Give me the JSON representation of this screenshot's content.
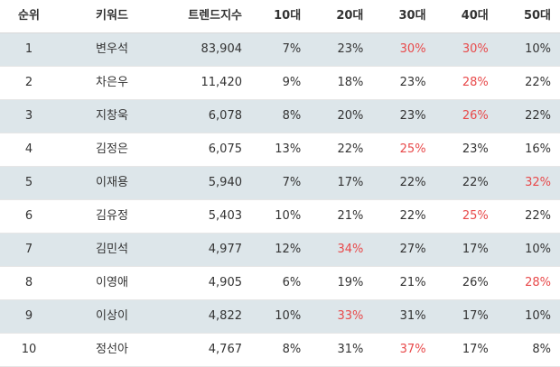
{
  "colors": {
    "highlight": "#e8494a",
    "row_shade": "#dde6ea",
    "text": "#333333"
  },
  "headers": [
    "순위",
    "키워드",
    "트렌드지수",
    "10대",
    "20대",
    "30대",
    "40대",
    "50대"
  ],
  "rows": [
    {
      "rank": "1",
      "keyword": "변우석",
      "index": "83,904",
      "p10": "7%",
      "p20": "23%",
      "p30": "30%",
      "p40": "30%",
      "p50": "10%",
      "hl": [
        "p30",
        "p40"
      ]
    },
    {
      "rank": "2",
      "keyword": "차은우",
      "index": "11,420",
      "p10": "9%",
      "p20": "18%",
      "p30": "23%",
      "p40": "28%",
      "p50": "22%",
      "hl": [
        "p40"
      ]
    },
    {
      "rank": "3",
      "keyword": "지창욱",
      "index": "6,078",
      "p10": "8%",
      "p20": "20%",
      "p30": "23%",
      "p40": "26%",
      "p50": "22%",
      "hl": [
        "p40"
      ]
    },
    {
      "rank": "4",
      "keyword": "김정은",
      "index": "6,075",
      "p10": "13%",
      "p20": "22%",
      "p30": "25%",
      "p40": "23%",
      "p50": "16%",
      "hl": [
        "p30"
      ]
    },
    {
      "rank": "5",
      "keyword": "이재용",
      "index": "5,940",
      "p10": "7%",
      "p20": "17%",
      "p30": "22%",
      "p40": "22%",
      "p50": "32%",
      "hl": [
        "p50"
      ]
    },
    {
      "rank": "6",
      "keyword": "김유정",
      "index": "5,403",
      "p10": "10%",
      "p20": "21%",
      "p30": "22%",
      "p40": "25%",
      "p50": "22%",
      "hl": [
        "p40"
      ]
    },
    {
      "rank": "7",
      "keyword": "김민석",
      "index": "4,977",
      "p10": "12%",
      "p20": "34%",
      "p30": "27%",
      "p40": "17%",
      "p50": "10%",
      "hl": [
        "p20"
      ]
    },
    {
      "rank": "8",
      "keyword": "이영애",
      "index": "4,905",
      "p10": "6%",
      "p20": "19%",
      "p30": "21%",
      "p40": "26%",
      "p50": "28%",
      "hl": [
        "p50"
      ]
    },
    {
      "rank": "9",
      "keyword": "이상이",
      "index": "4,822",
      "p10": "10%",
      "p20": "33%",
      "p30": "31%",
      "p40": "17%",
      "p50": "10%",
      "hl": [
        "p20"
      ]
    },
    {
      "rank": "10",
      "keyword": "정선아",
      "index": "4,767",
      "p10": "8%",
      "p20": "31%",
      "p30": "37%",
      "p40": "17%",
      "p50": "8%",
      "hl": [
        "p30"
      ]
    }
  ]
}
